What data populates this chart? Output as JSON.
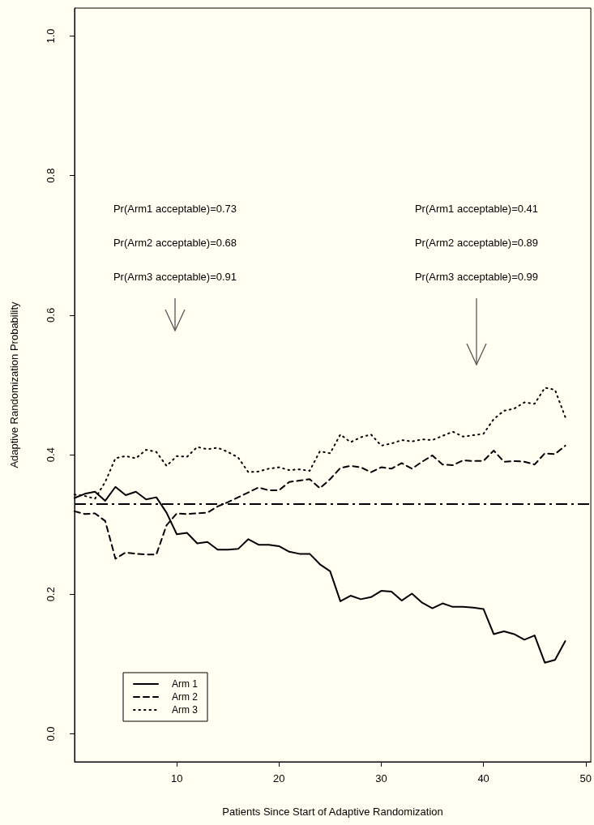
{
  "chart_data": {
    "type": "line",
    "xlabel": "Patients Since Start of Adaptive Randomization",
    "ylabel": "Adaptive Randomization Probability",
    "x": [
      0,
      1,
      2,
      3,
      4,
      5,
      6,
      7,
      8,
      9,
      10,
      11,
      12,
      13,
      14,
      15,
      16,
      17,
      18,
      19,
      20,
      21,
      22,
      23,
      24,
      25,
      26,
      27,
      28,
      29,
      30,
      31,
      32,
      33,
      34,
      35,
      36,
      37,
      38,
      39,
      40,
      41,
      42,
      43,
      44,
      45,
      46,
      47,
      48
    ],
    "series": [
      {
        "name": "Arm 1",
        "color": "#000000",
        "line_style": "solid",
        "values": [
          0.338,
          0.344,
          0.347,
          0.334,
          0.354,
          0.342,
          0.347,
          0.336,
          0.339,
          0.317,
          0.286,
          0.288,
          0.273,
          0.275,
          0.264,
          0.264,
          0.265,
          0.279,
          0.271,
          0.271,
          0.269,
          0.261,
          0.258,
          0.258,
          0.243,
          0.233,
          0.19,
          0.198,
          0.193,
          0.196,
          0.205,
          0.204,
          0.191,
          0.201,
          0.188,
          0.18,
          0.187,
          0.182,
          0.182,
          0.181,
          0.179,
          0.143,
          0.147,
          0.143,
          0.135,
          0.141,
          0.102,
          0.106,
          0.133
        ]
      },
      {
        "name": "Arm 2",
        "color": "#000000",
        "line_style": "dashed",
        "values": [
          0.319,
          0.315,
          0.316,
          0.305,
          0.251,
          0.26,
          0.258,
          0.257,
          0.257,
          0.299,
          0.316,
          0.315,
          0.316,
          0.317,
          0.326,
          0.332,
          0.339,
          0.346,
          0.353,
          0.349,
          0.349,
          0.361,
          0.363,
          0.365,
          0.352,
          0.365,
          0.381,
          0.384,
          0.382,
          0.375,
          0.382,
          0.38,
          0.388,
          0.38,
          0.39,
          0.399,
          0.386,
          0.385,
          0.392,
          0.391,
          0.391,
          0.406,
          0.39,
          0.391,
          0.39,
          0.386,
          0.402,
          0.401,
          0.413
        ]
      },
      {
        "name": "Arm 3",
        "color": "#000000",
        "line_style": "dotted",
        "values": [
          0.343,
          0.341,
          0.337,
          0.361,
          0.395,
          0.398,
          0.395,
          0.407,
          0.404,
          0.384,
          0.398,
          0.397,
          0.411,
          0.408,
          0.41,
          0.404,
          0.396,
          0.375,
          0.376,
          0.38,
          0.382,
          0.378,
          0.379,
          0.377,
          0.405,
          0.402,
          0.429,
          0.418,
          0.425,
          0.429,
          0.413,
          0.416,
          0.421,
          0.419,
          0.422,
          0.421,
          0.427,
          0.433,
          0.426,
          0.428,
          0.43,
          0.451,
          0.463,
          0.466,
          0.475,
          0.473,
          0.496,
          0.493,
          0.454
        ]
      }
    ],
    "xlim": [
      0,
      50.5
    ],
    "xticks": [
      10,
      20,
      30,
      40,
      50
    ],
    "ylim": [
      -0.04,
      1.04
    ],
    "yticks": [
      {
        "value": 0,
        "label": "0.0"
      },
      0.2,
      0.4,
      0.6,
      0.8,
      {
        "value": 1,
        "label": "1.0"
      }
    ],
    "ref_lines": [
      {
        "axis": "y",
        "value": 0.333,
        "color": "#000000",
        "line_style": "dashed"
      }
    ],
    "annotations": [
      "Pr(Arm1 acceptable)=0.73",
      "Pr(Arm2 acceptable)=0.68",
      "Pr(Arm3 acceptable)=0.91",
      "Pr(Arm1 acceptable)=0.41",
      "Pr(Arm2 acceptable)=0.89",
      "Pr(Arm3 acceptable)=0.99"
    ],
    "legend": "bottom left",
    "grid": false,
    "marker": "none"
  }
}
